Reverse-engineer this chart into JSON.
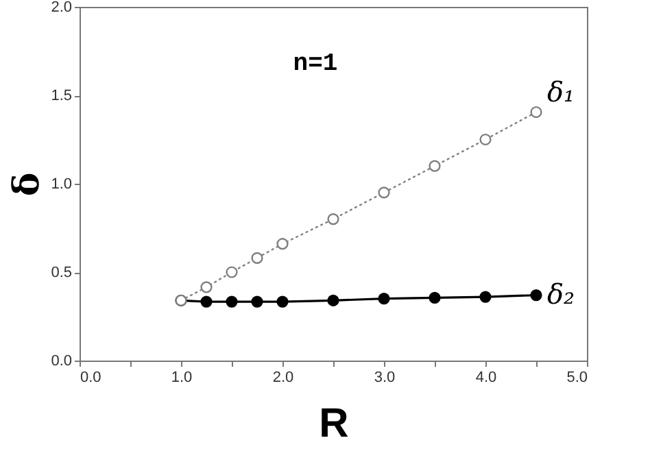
{
  "chart_data": {
    "type": "line",
    "xlabel": "R",
    "ylabel": "δ",
    "annotations": [
      "n=1"
    ],
    "x": [
      1.0,
      1.25,
      1.5,
      1.75,
      2.0,
      2.5,
      3.0,
      3.5,
      4.0,
      4.5
    ],
    "series": [
      {
        "name": "δ₂",
        "color": "#000000",
        "line_style": "solid",
        "marker": "circle",
        "values": [
          0.34,
          0.333,
          0.333,
          0.333,
          0.333,
          0.34,
          0.35,
          0.355,
          0.36,
          0.37
        ]
      },
      {
        "name": "δ₁",
        "color": "#808080",
        "line_style": "dotted",
        "marker": "circle",
        "values": [
          0.34,
          0.415,
          0.5,
          0.58,
          0.66,
          0.8,
          0.95,
          1.1,
          1.25,
          1.405
        ]
      }
    ],
    "xlim": [
      0,
      5
    ],
    "ylim": [
      0,
      2
    ],
    "xticks": [
      {
        "value": 0,
        "label": "0.0"
      },
      {
        "value": 0.5,
        "label": null
      },
      {
        "value": 1,
        "label": "1.0"
      },
      {
        "value": 1.5,
        "label": null
      },
      {
        "value": 2,
        "label": "2.0"
      },
      {
        "value": 2.5,
        "label": null
      },
      {
        "value": 3,
        "label": "3.0"
      },
      {
        "value": 3.5,
        "label": null
      },
      {
        "value": 4,
        "label": "4.0"
      },
      {
        "value": 4.5,
        "label": null
      },
      {
        "value": 5,
        "label": "5.0"
      }
    ],
    "yticks": [
      {
        "value": 0,
        "label": "0.0"
      },
      {
        "value": 0.5,
        "label": "0.5"
      },
      {
        "value": 1,
        "label": "1.0"
      },
      {
        "value": 1.5,
        "label": "1.5"
      },
      {
        "value": 2,
        "label": "2.0"
      }
    ],
    "grid": false
  }
}
